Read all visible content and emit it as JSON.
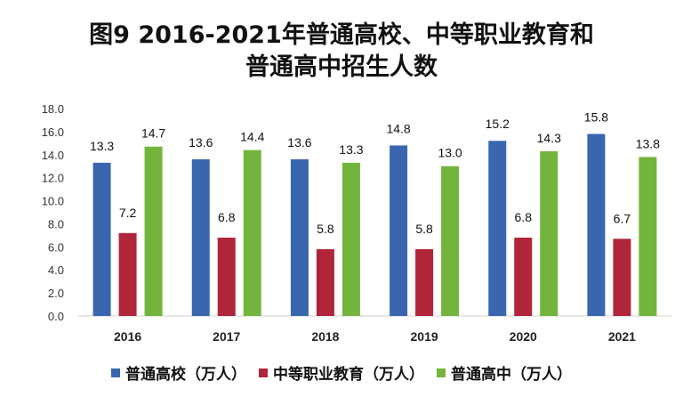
{
  "chart_data": {
    "type": "bar",
    "title_line1": "图9 2016-2021年普通高校、中等职业教育和",
    "title_line2": "普通高中招生人数",
    "categories": [
      "2016",
      "2017",
      "2018",
      "2019",
      "2020",
      "2021"
    ],
    "series": [
      {
        "name": "普通高校（万人）",
        "color": "#3a66b0",
        "values": [
          13.3,
          13.6,
          13.6,
          14.8,
          15.2,
          15.8
        ],
        "labels": [
          "13.3",
          "13.6",
          "13.6",
          "14.8",
          "15.2",
          "15.8"
        ]
      },
      {
        "name": "中等职业教育（万人）",
        "color": "#b0253a",
        "values": [
          7.2,
          6.8,
          5.8,
          5.8,
          6.8,
          6.7
        ],
        "labels": [
          "7.2",
          "6.8",
          "5.8",
          "5.8",
          "6.8",
          "6.7"
        ]
      },
      {
        "name": "普通高中（万人）",
        "color": "#73b43c",
        "values": [
          14.7,
          14.4,
          13.3,
          13.0,
          14.3,
          13.8
        ],
        "labels": [
          "14.7",
          "14.4",
          "13.3",
          "13.0",
          "14.3",
          "13.8"
        ]
      }
    ],
    "ylim": [
      0,
      18
    ],
    "yticks": [
      "0.0",
      "2.0",
      "4.0",
      "6.0",
      "8.0",
      "10.0",
      "12.0",
      "14.0",
      "16.0",
      "18.0"
    ],
    "ytick_values": [
      0,
      2,
      4,
      6,
      8,
      10,
      12,
      14,
      16,
      18
    ],
    "xlabel": "",
    "ylabel": "",
    "grid": false,
    "legend_position": "bottom"
  }
}
